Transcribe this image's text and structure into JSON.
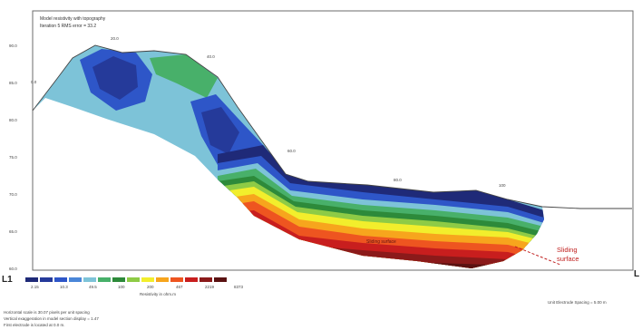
{
  "chart_data": {
    "type": "heatmap",
    "title": "Model resistivity with topography",
    "subtitle": "Iteration 5 RMS error = 33.2",
    "line_start_label": "L1",
    "line_end_label": "L",
    "y_ticks": [
      "90.0",
      "85.0",
      "80.0",
      "75.0",
      "70.0",
      "65.0",
      "60.0"
    ],
    "topo_labels": [
      "0.0",
      "20.0",
      "40.0",
      "60.0",
      "80.0",
      "100"
    ],
    "legend": {
      "title": "Resistivity in ohm.m",
      "labels": [
        "2.15",
        "10.3",
        "49.5",
        "100",
        "200",
        "467",
        "2219",
        "8373"
      ],
      "colors": [
        "#1f2a78",
        "#253a9a",
        "#2e56c8",
        "#4a86d8",
        "#7dc3d8",
        "#48b06a",
        "#2d8a3a",
        "#8ecb46",
        "#f2ee2c",
        "#f7a51d",
        "#ee5520",
        "#c81e1e",
        "#8b1a1a",
        "#5a1212"
      ]
    },
    "annotation_inside": "Sliding surface",
    "annotation_callout": [
      "Sliding",
      "surface"
    ],
    "electrode_spacing": "Unit Electrode Spacing = 5.00 m",
    "notes": [
      "Horizontal scale is 30.07 pixels per unit spacing",
      "Vertical exaggeration in model section display = 1.47",
      "First electrode is located at 0.0 m."
    ]
  }
}
